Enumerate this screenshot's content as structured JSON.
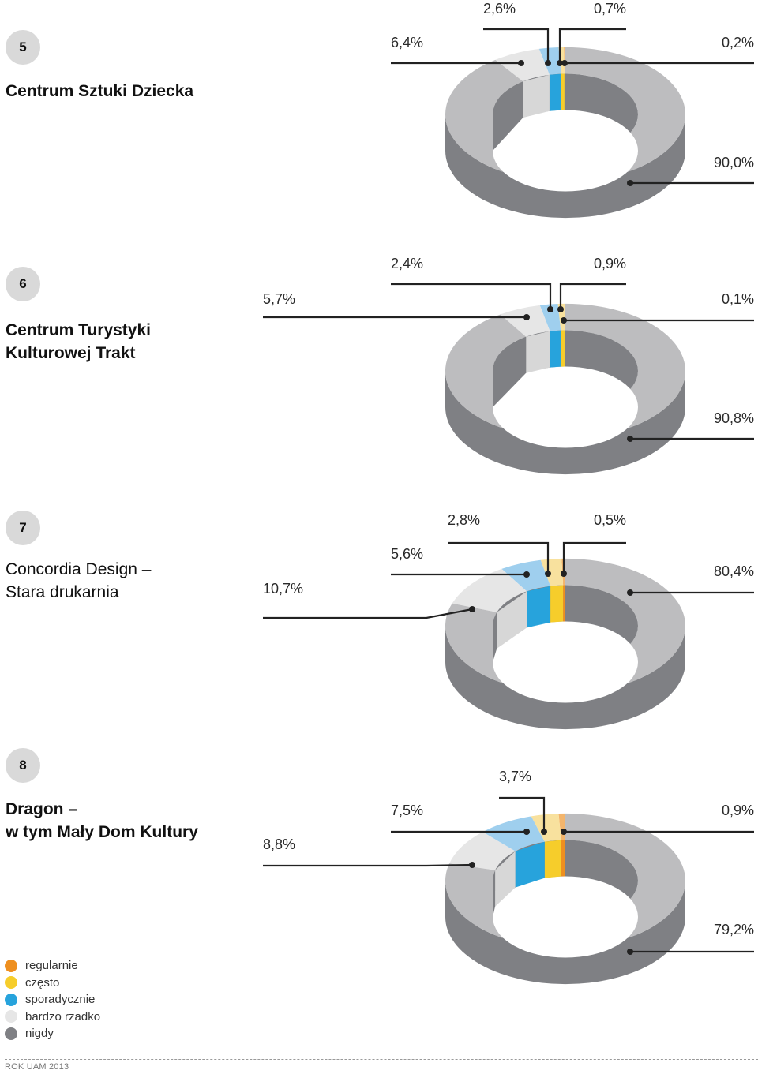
{
  "colors": {
    "regularnie": "#ee8f1f",
    "czesto": "#f6cd2b",
    "sporadycznie": "#27a3dc",
    "bardzo_rzadko": "#e6e6e6",
    "nigdy": "#7f8084"
  },
  "legend": [
    {
      "label": "regularnie",
      "color": "#ee8f1f"
    },
    {
      "label": "często",
      "color": "#f6cd2b"
    },
    {
      "label": "sporadycznie",
      "color": "#27a3dc"
    },
    {
      "label": "bardzo rzadko",
      "color": "#e6e6e6"
    },
    {
      "label": "nigdy",
      "color": "#7f8084"
    }
  ],
  "panels": [
    {
      "number": "5",
      "name": "Centrum Sztuki Dziecka"
    },
    {
      "number": "6",
      "name": "Centrum Turystyki\nKulturowej Trakt"
    },
    {
      "number": "7",
      "name": "Concordia Design –\nStara drukarnia"
    },
    {
      "number": "8",
      "name": "Dragon –\nw tym Mały Dom Kultury"
    }
  ],
  "chart_data": [
    {
      "type": "pie",
      "style": "3d-donut",
      "title": "Centrum Sztuki Dziecka",
      "categories": [
        "regularnie",
        "często",
        "sporadycznie",
        "bardzo rzadko",
        "nigdy"
      ],
      "values": [
        0.2,
        0.7,
        2.6,
        6.4,
        90.0
      ],
      "labels": [
        "0,2%",
        "0,7%",
        "2,6%",
        "6,4%",
        "90,0%"
      ]
    },
    {
      "type": "pie",
      "style": "3d-donut",
      "title": "Centrum Turystyki Kulturowej Trakt",
      "categories": [
        "regularnie",
        "często",
        "sporadycznie",
        "bardzo rzadko",
        "nigdy"
      ],
      "values": [
        0.1,
        0.9,
        2.4,
        5.7,
        90.8
      ],
      "labels": [
        "0,1%",
        "0,9%",
        "2,4%",
        "5,7%",
        "90,8%"
      ]
    },
    {
      "type": "pie",
      "style": "3d-donut",
      "title": "Concordia Design – Stara drukarnia",
      "categories": [
        "regularnie",
        "często",
        "sporadycznie",
        "bardzo rzadko",
        "nigdy"
      ],
      "values": [
        0.5,
        2.8,
        5.6,
        10.7,
        80.4
      ],
      "labels": [
        "0,5%",
        "2,8%",
        "5,6%",
        "10,7%",
        "80,4%"
      ]
    },
    {
      "type": "pie",
      "style": "3d-donut",
      "title": "Dragon – w tym Mały Dom Kultury",
      "categories": [
        "regularnie",
        "często",
        "sporadycznie",
        "bardzo rzadko",
        "nigdy"
      ],
      "values": [
        0.9,
        3.7,
        7.5,
        8.8,
        79.2
      ],
      "labels": [
        "0,9%",
        "3,7%",
        "7,5%",
        "8,8%",
        "79,2%"
      ]
    }
  ],
  "footer": "ROK UAM 2013"
}
